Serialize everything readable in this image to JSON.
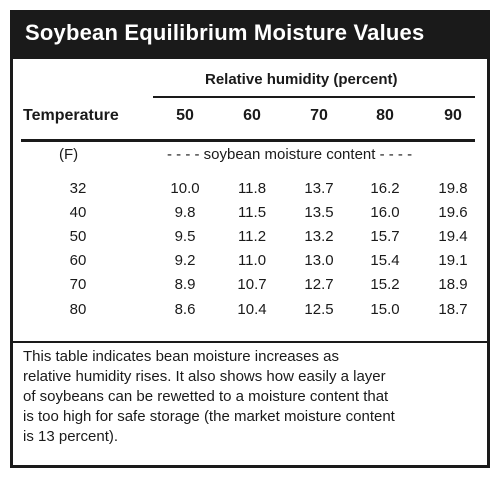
{
  "title": "Soybean Equilibrium Moisture Values",
  "header": {
    "group_label": "Relative humidity (percent)",
    "row_header": "Temperature",
    "columns": [
      "50",
      "60",
      "70",
      "80",
      "90"
    ]
  },
  "unit_row": {
    "unit": "(F)",
    "span_label": "- - - - soybean moisture content - - - -"
  },
  "rows": [
    {
      "temp": "32",
      "values": [
        "10.0",
        "11.8",
        "13.7",
        "16.2",
        "19.8"
      ]
    },
    {
      "temp": "40",
      "values": [
        "9.8",
        "11.5",
        "13.5",
        "16.0",
        "19.6"
      ]
    },
    {
      "temp": "50",
      "values": [
        "9.5",
        "11.2",
        "13.2",
        "15.7",
        "19.4"
      ]
    },
    {
      "temp": "60",
      "values": [
        "9.2",
        "11.0",
        "13.0",
        "15.4",
        "19.1"
      ]
    },
    {
      "temp": "70",
      "values": [
        "8.9",
        "10.7",
        "12.7",
        "15.2",
        "18.9"
      ]
    },
    {
      "temp": "80",
      "values": [
        "8.6",
        "10.4",
        "12.5",
        "15.0",
        "18.7"
      ]
    }
  ],
  "note_lines": [
    "This table indicates bean moisture increases as",
    "relative humidity rises. It also shows how easily a layer",
    "of soybeans can be rewetted to a moisture content that",
    "is too high for safe storage (the market moisture content",
    "is 13 percent)."
  ]
}
